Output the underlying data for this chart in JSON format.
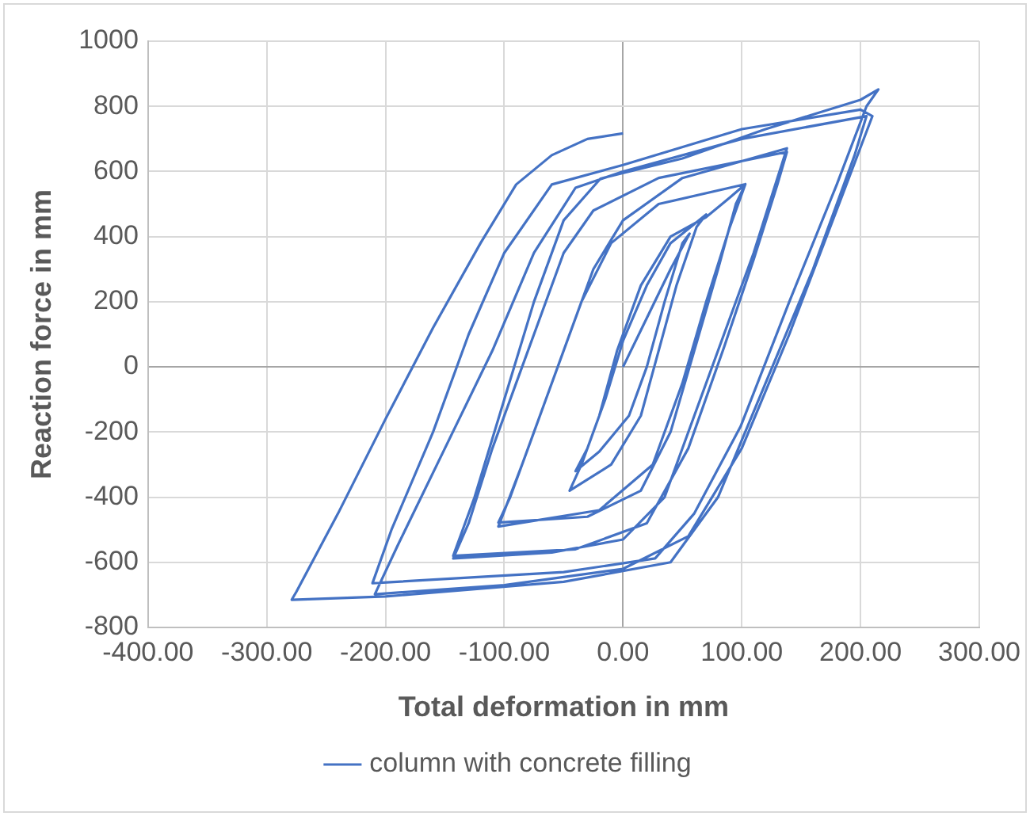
{
  "chart_data": {
    "type": "line",
    "xlabel": "Total deformation in mm",
    "ylabel": "Reaction force in mm",
    "xlim": [
      -400,
      300
    ],
    "ylim": [
      -800,
      1000
    ],
    "xticks": [
      {
        "value": -400,
        "label": "-400.00"
      },
      {
        "value": -300,
        "label": "-300.00"
      },
      {
        "value": -200,
        "label": "-200.00"
      },
      {
        "value": -100,
        "label": "-100.00"
      },
      {
        "value": 0,
        "label": "0.00"
      },
      {
        "value": 100,
        "label": "100.00"
      },
      {
        "value": 200,
        "label": "200.00"
      },
      {
        "value": 300,
        "label": "300.00"
      }
    ],
    "yticks": [
      -800,
      -600,
      -400,
      -200,
      0,
      200,
      400,
      600,
      800,
      1000
    ],
    "grid": true,
    "legend": "bottom",
    "marker": "none",
    "line_style": "solid",
    "series": [
      {
        "name": "column with concrete filling",
        "color": "#4472c4",
        "x": [
          0,
          20,
          40,
          56,
          50,
          35,
          20,
          5,
          -20,
          -40,
          -30,
          -15,
          0,
          20,
          40,
          70,
          62,
          45,
          30,
          15,
          -10,
          -45,
          -35,
          -20,
          -5,
          15,
          40,
          70,
          90,
          103,
          95,
          80,
          60,
          40,
          15,
          -30,
          -105,
          -95,
          -75,
          -55,
          -35,
          -10,
          30,
          103,
          90,
          70,
          50,
          25,
          -20,
          -105,
          -85,
          -65,
          -45,
          -25,
          0,
          50,
          138,
          130,
          110,
          85,
          60,
          35,
          0,
          -60,
          -143,
          -130,
          -110,
          -90,
          -70,
          -50,
          -25,
          30,
          138,
          130,
          110,
          85,
          55,
          20,
          -40,
          -143,
          -125,
          -100,
          -75,
          -50,
          -19,
          50,
          120,
          200,
          215,
          205,
          180,
          140,
          99,
          60,
          27,
          -50,
          -211,
          -195,
          -160,
          -130,
          -100,
          -60,
          0,
          100,
          200,
          210,
          185,
          140,
          100,
          55,
          0,
          -100,
          -209,
          -190,
          -150,
          -110,
          -75,
          -40,
          0,
          100,
          205,
          195,
          160,
          120,
          80,
          40,
          -50,
          -200,
          -279,
          -275,
          -240,
          -200,
          -160,
          -120,
          -90,
          -60,
          -30,
          0
        ],
        "values": [
          0,
          150,
          300,
          409,
          380,
          200,
          0,
          -150,
          -260,
          -320,
          -250,
          -100,
          80,
          250,
          380,
          468,
          430,
          250,
          50,
          -150,
          -300,
          -380,
          -300,
          -150,
          50,
          250,
          400,
          460,
          520,
          561,
          500,
          300,
          50,
          -200,
          -380,
          -460,
          -478,
          -400,
          -200,
          0,
          200,
          380,
          500,
          561,
          430,
          200,
          -50,
          -300,
          -440,
          -490,
          -300,
          -100,
          100,
          300,
          450,
          580,
          671,
          580,
          350,
          100,
          -150,
          -400,
          -530,
          -570,
          -588,
          -480,
          -250,
          -50,
          150,
          350,
          480,
          580,
          660,
          560,
          330,
          60,
          -250,
          -480,
          -560,
          -580,
          -400,
          -100,
          200,
          450,
          578,
          640,
          730,
          820,
          852,
          800,
          560,
          200,
          -183,
          -450,
          -588,
          -630,
          -664,
          -500,
          -200,
          100,
          350,
          560,
          620,
          730,
          790,
          770,
          530,
          100,
          -250,
          -520,
          -620,
          -670,
          -698,
          -550,
          -250,
          50,
          350,
          550,
          600,
          700,
          770,
          650,
          300,
          -50,
          -400,
          -600,
          -660,
          -705,
          -715,
          -690,
          -450,
          -160,
          120,
          380,
          560,
          650,
          700,
          717
        ]
      }
    ]
  }
}
